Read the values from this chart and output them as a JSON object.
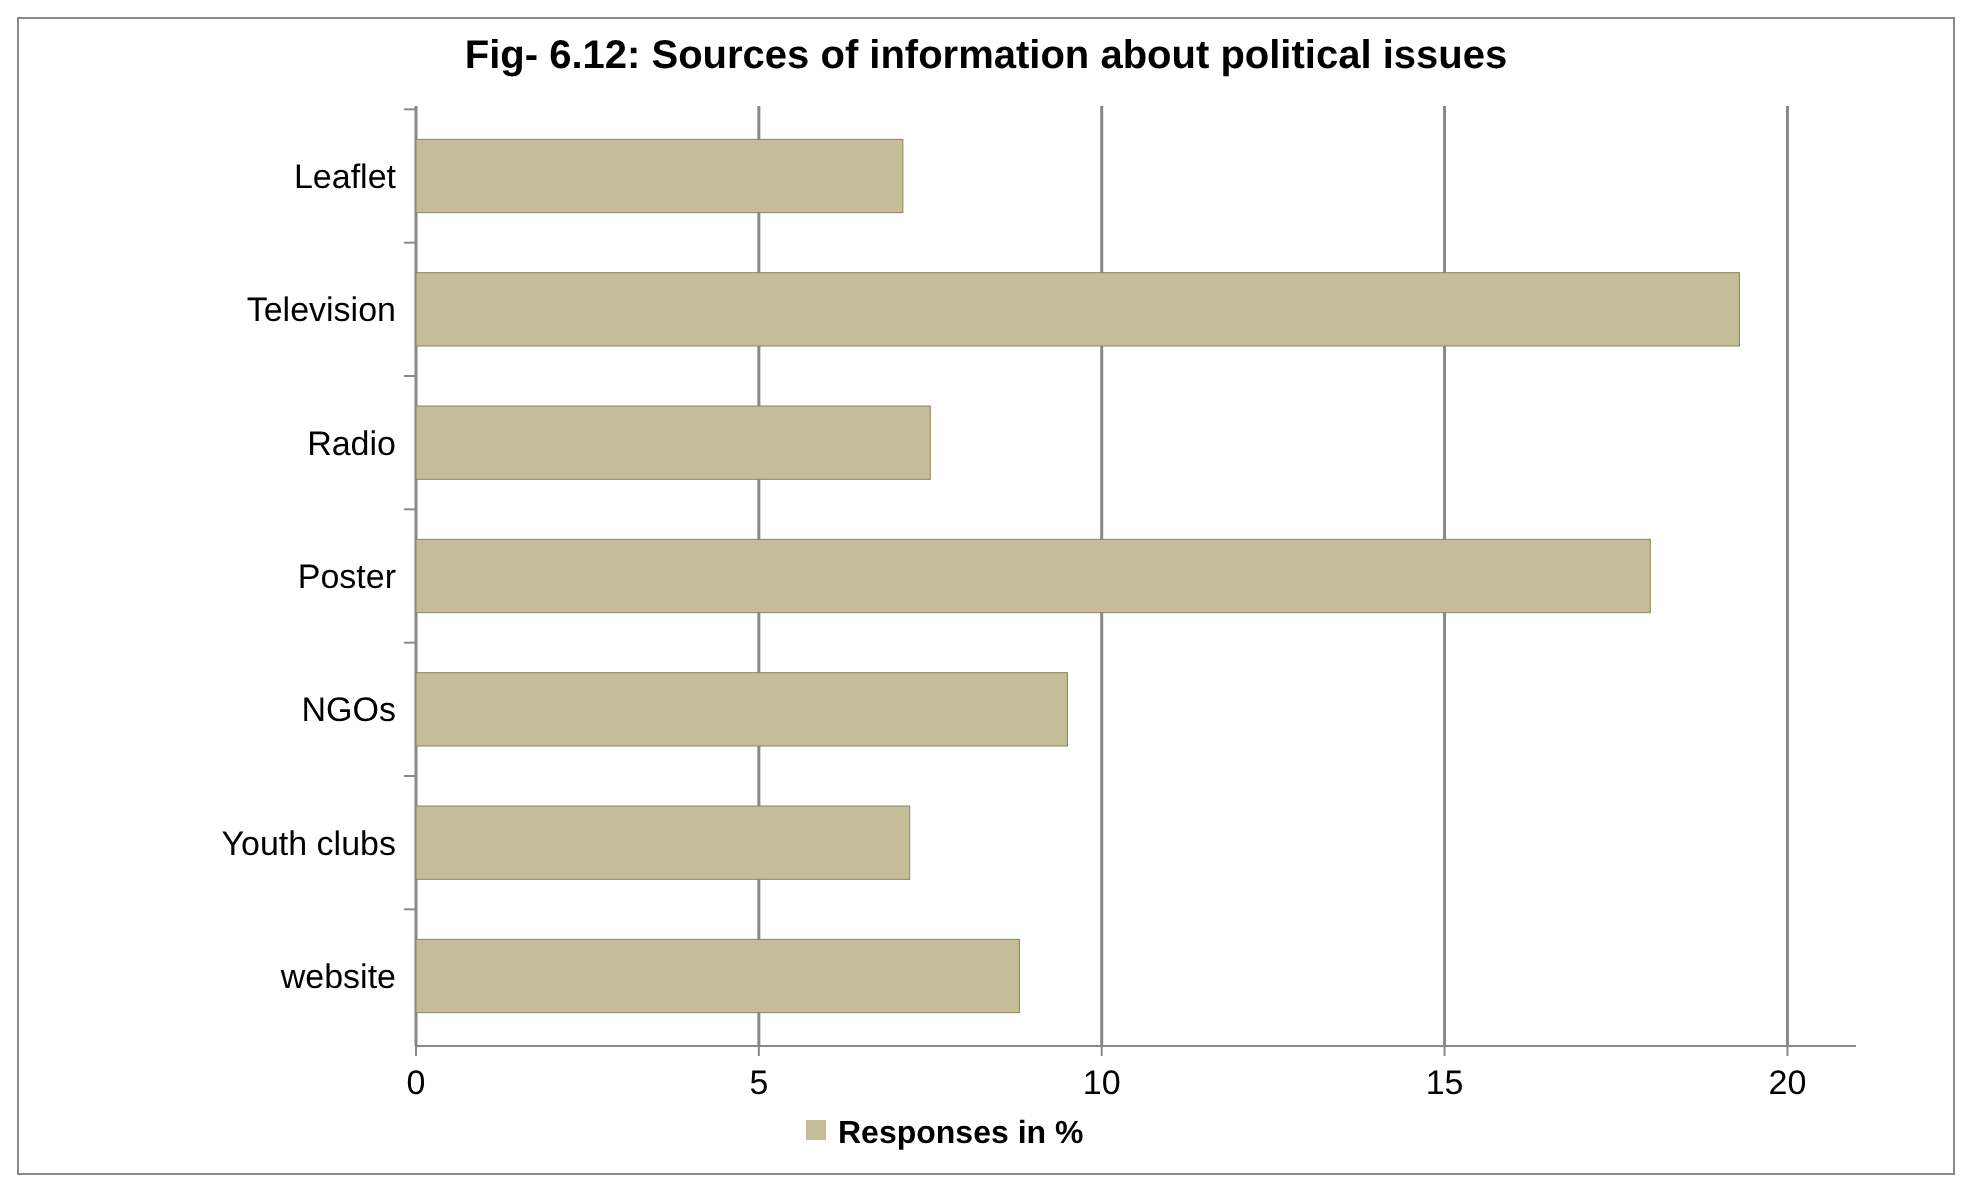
{
  "chart_data": {
    "type": "bar",
    "orientation": "horizontal",
    "title": "Fig- 6.12: Sources of information about political issues",
    "categories": [
      "Leaflet",
      "Television",
      "Radio",
      "Poster",
      "NGOs",
      "Youth clubs",
      "website"
    ],
    "series": [
      {
        "name": "Responses in %",
        "color": "#c4bd97",
        "values": [
          7.1,
          19.3,
          7.5,
          18.0,
          9.5,
          7.2,
          8.8
        ]
      }
    ],
    "xlim": [
      0,
      21
    ],
    "xticks": [
      0,
      5,
      10,
      15,
      20
    ],
    "grid": "x",
    "legend": "bottom"
  }
}
